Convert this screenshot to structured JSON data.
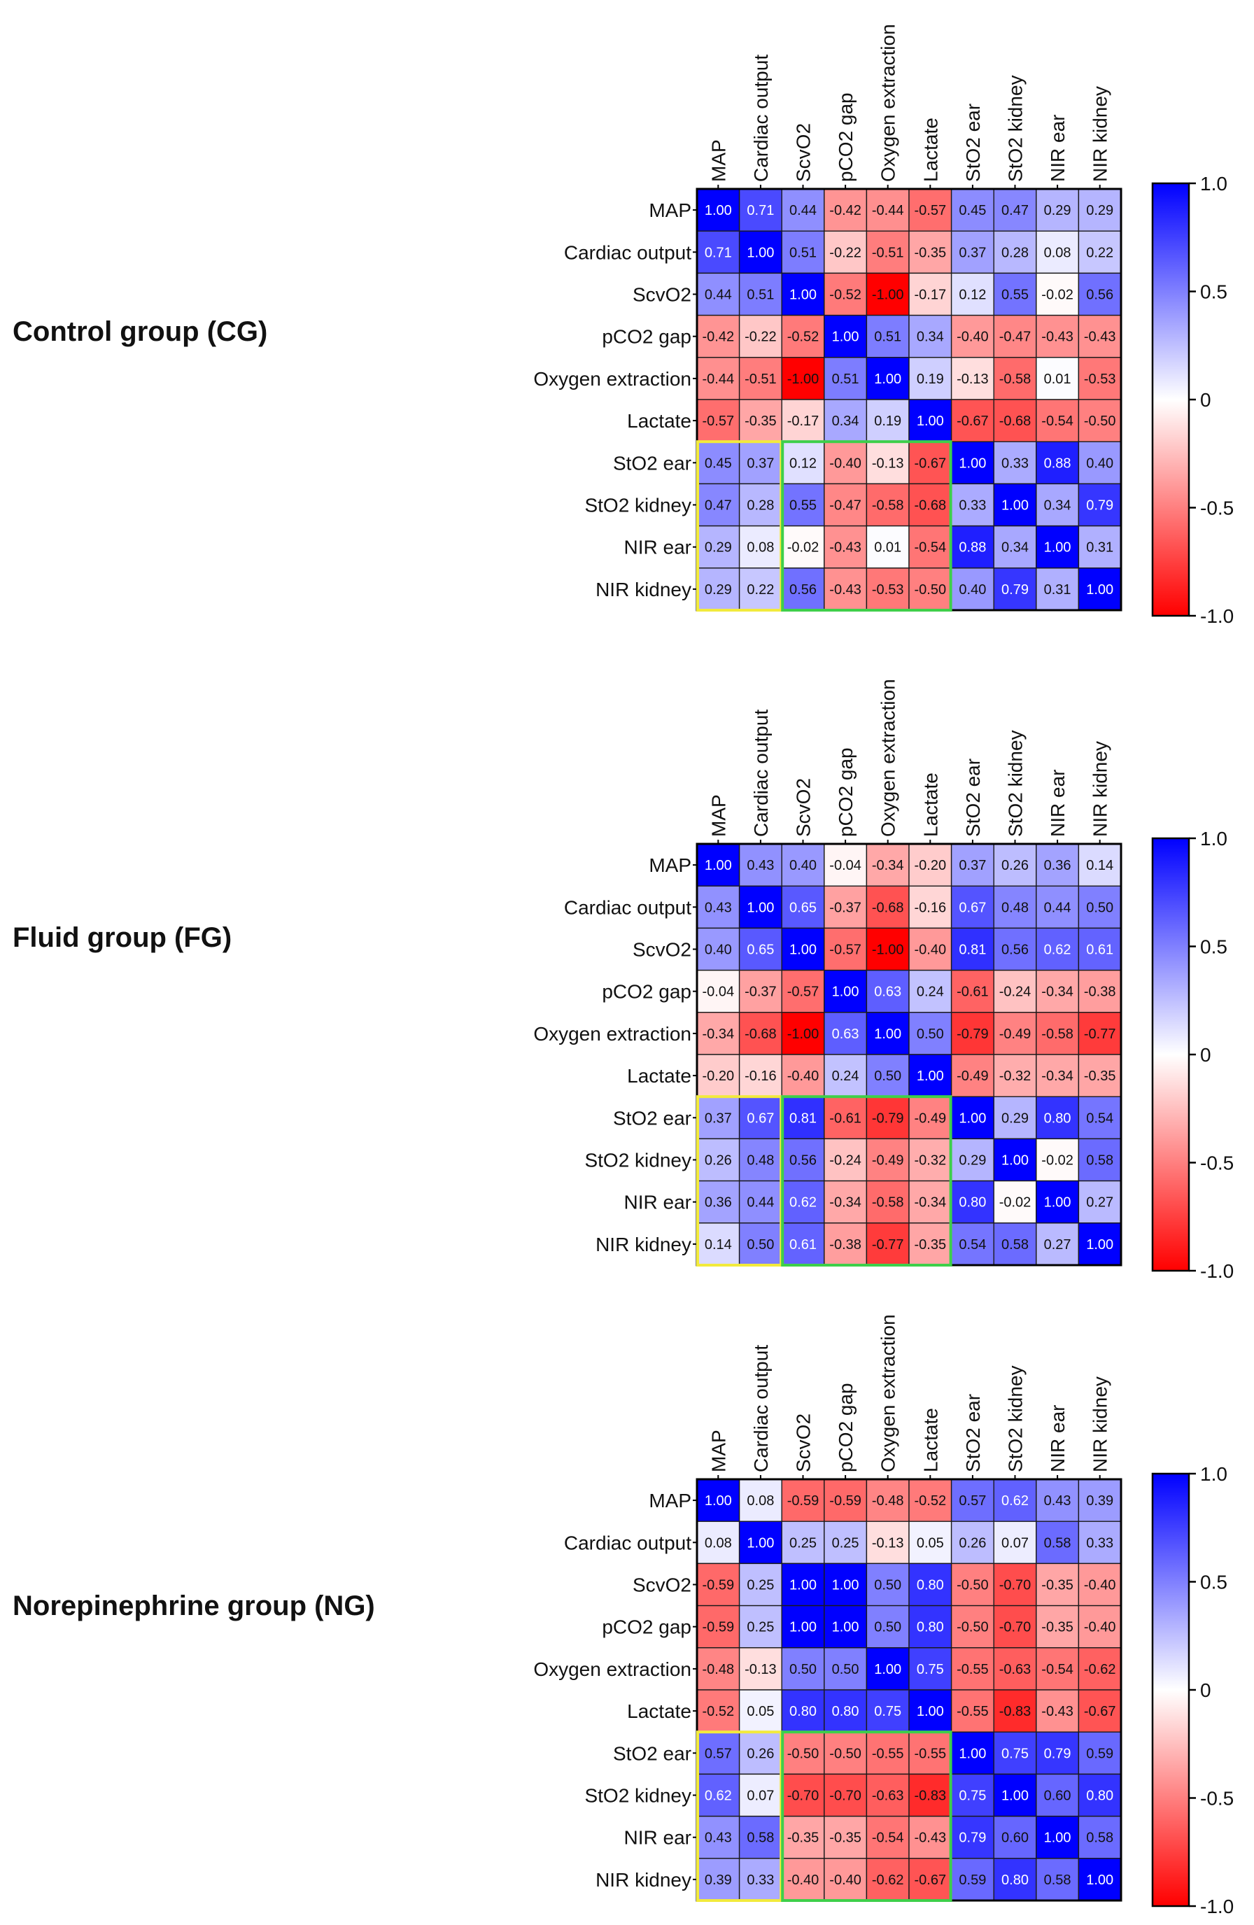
{
  "chart_data": [
    {
      "type": "heatmap",
      "title": "Control group (CG)",
      "variables": [
        "MAP",
        "Cardiac output",
        "ScvO2",
        "pCO2 gap",
        "Oxygen extraction",
        "Lactate",
        "StO2 ear",
        "StO2 kidney",
        "NIR ear",
        "NIR kidney"
      ],
      "values": [
        [
          "1.00",
          "0.71",
          "0.44",
          "-0.42",
          "-0.44",
          "-0.57",
          "0.45",
          "0.47",
          "0.29",
          "0.29"
        ],
        [
          "0.71",
          "1.00",
          "0.51",
          "-0.22",
          "-0.51",
          "-0.35",
          "0.37",
          "0.28",
          "0.08",
          "0.22"
        ],
        [
          "0.44",
          "0.51",
          "1.00",
          "-0.52",
          "-1.00",
          "-0.17",
          "0.12",
          "0.55",
          "-0.02",
          "0.56"
        ],
        [
          "-0.42",
          "-0.22",
          "-0.52",
          "1.00",
          "0.51",
          "0.34",
          "-0.40",
          "-0.47",
          "-0.43",
          "-0.43"
        ],
        [
          "-0.44",
          "-0.51",
          "-1.00",
          "0.51",
          "1.00",
          "0.19",
          "-0.13",
          "-0.58",
          "0.01",
          "-0.53"
        ],
        [
          "-0.57",
          "-0.35",
          "-0.17",
          "0.34",
          "0.19",
          "1.00",
          "-0.67",
          "-0.68",
          "-0.54",
          "-0.50"
        ],
        [
          "0.45",
          "0.37",
          "0.12",
          "-0.40",
          "-0.13",
          "-0.67",
          "1.00",
          "0.33",
          "0.88",
          "0.40"
        ],
        [
          "0.47",
          "0.28",
          "0.55",
          "-0.47",
          "-0.58",
          "-0.68",
          "0.33",
          "1.00",
          "0.34",
          "0.79"
        ],
        [
          "0.29",
          "0.08",
          "-0.02",
          "-0.43",
          "0.01",
          "-0.54",
          "0.88",
          "0.34",
          "1.00",
          "0.31"
        ],
        [
          "0.29",
          "0.22",
          "0.56",
          "-0.43",
          "-0.53",
          "-0.50",
          "0.40",
          "0.79",
          "0.31",
          "1.00"
        ]
      ],
      "colorbar": {
        "min": -1.0,
        "max": 1.0,
        "ticks": [
          "1.0",
          "0.5",
          "0",
          "-0.5",
          "-1.0"
        ],
        "low_color": "#ff0000",
        "mid_color": "#ffffff",
        "high_color": "#0000ff"
      }
    },
    {
      "type": "heatmap",
      "title": "Fluid group (FG)",
      "variables": [
        "MAP",
        "Cardiac output",
        "ScvO2",
        "pCO2 gap",
        "Oxygen extraction",
        "Lactate",
        "StO2 ear",
        "StO2 kidney",
        "NIR ear",
        "NIR kidney"
      ],
      "values": [
        [
          "1.00",
          "0.43",
          "0.40",
          "-0.04",
          "-0.34",
          "-0.20",
          "0.37",
          "0.26",
          "0.36",
          "0.14"
        ],
        [
          "0.43",
          "1.00",
          "0.65",
          "-0.37",
          "-0.68",
          "-0.16",
          "0.67",
          "0.48",
          "0.44",
          "0.50"
        ],
        [
          "0.40",
          "0.65",
          "1.00",
          "-0.57",
          "-1.00",
          "-0.40",
          "0.81",
          "0.56",
          "0.62",
          "0.61"
        ],
        [
          "-0.04",
          "-0.37",
          "-0.57",
          "1.00",
          "0.63",
          "0.24",
          "-0.61",
          "-0.24",
          "-0.34",
          "-0.38"
        ],
        [
          "-0.34",
          "-0.68",
          "-1.00",
          "0.63",
          "1.00",
          "0.50",
          "-0.79",
          "-0.49",
          "-0.58",
          "-0.77"
        ],
        [
          "-0.20",
          "-0.16",
          "-0.40",
          "0.24",
          "0.50",
          "1.00",
          "-0.49",
          "-0.32",
          "-0.34",
          "-0.35"
        ],
        [
          "0.37",
          "0.67",
          "0.81",
          "-0.61",
          "-0.79",
          "-0.49",
          "1.00",
          "0.29",
          "0.80",
          "0.54"
        ],
        [
          "0.26",
          "0.48",
          "0.56",
          "-0.24",
          "-0.49",
          "-0.32",
          "0.29",
          "1.00",
          "-0.02",
          "0.58"
        ],
        [
          "0.36",
          "0.44",
          "0.62",
          "-0.34",
          "-0.58",
          "-0.34",
          "0.80",
          "-0.02",
          "1.00",
          "0.27"
        ],
        [
          "0.14",
          "0.50",
          "0.61",
          "-0.38",
          "-0.77",
          "-0.35",
          "0.54",
          "0.58",
          "0.27",
          "1.00"
        ]
      ],
      "colorbar": {
        "min": -1.0,
        "max": 1.0,
        "ticks": [
          "1.0",
          "0.5",
          "0",
          "-0.5",
          "-1.0"
        ],
        "low_color": "#ff0000",
        "mid_color": "#ffffff",
        "high_color": "#0000ff"
      }
    },
    {
      "type": "heatmap",
      "title": "Norepinephrine group (NG)",
      "variables": [
        "MAP",
        "Cardiac output",
        "ScvO2",
        "pCO2 gap",
        "Oxygen extraction",
        "Lactate",
        "StO2 ear",
        "StO2 kidney",
        "NIR ear",
        "NIR kidney"
      ],
      "values": [
        [
          "1.00",
          "0.08",
          "-0.59",
          "-0.59",
          "-0.48",
          "-0.52",
          "0.57",
          "0.62",
          "0.43",
          "0.39"
        ],
        [
          "0.08",
          "1.00",
          "0.25",
          "0.25",
          "-0.13",
          "0.05",
          "0.26",
          "0.07",
          "0.58",
          "0.33"
        ],
        [
          "-0.59",
          "0.25",
          "1.00",
          "1.00",
          "0.50",
          "0.80",
          "-0.50",
          "-0.70",
          "-0.35",
          "-0.40"
        ],
        [
          "-0.59",
          "0.25",
          "1.00",
          "1.00",
          "0.50",
          "0.80",
          "-0.50",
          "-0.70",
          "-0.35",
          "-0.40"
        ],
        [
          "-0.48",
          "-0.13",
          "0.50",
          "0.50",
          "1.00",
          "0.75",
          "-0.55",
          "-0.63",
          "-0.54",
          "-0.62"
        ],
        [
          "-0.52",
          "0.05",
          "0.80",
          "0.80",
          "0.75",
          "1.00",
          "-0.55",
          "-0.83",
          "-0.43",
          "-0.67"
        ],
        [
          "0.57",
          "0.26",
          "-0.50",
          "-0.50",
          "-0.55",
          "-0.55",
          "1.00",
          "0.75",
          "0.79",
          "0.59"
        ],
        [
          "0.62",
          "0.07",
          "-0.70",
          "-0.70",
          "-0.63",
          "-0.83",
          "0.75",
          "1.00",
          "0.60",
          "0.80"
        ],
        [
          "0.43",
          "0.58",
          "-0.35",
          "-0.35",
          "-0.54",
          "-0.43",
          "0.79",
          "0.60",
          "1.00",
          "0.58"
        ],
        [
          "0.39",
          "0.33",
          "-0.40",
          "-0.40",
          "-0.62",
          "-0.67",
          "0.59",
          "0.80",
          "0.58",
          "1.00"
        ]
      ],
      "colorbar": {
        "min": -1.0,
        "max": 1.0,
        "ticks": [
          "1.0",
          "0.5",
          "0",
          "-0.5",
          "-1.0"
        ],
        "low_color": "#ff0000",
        "mid_color": "#ffffff",
        "high_color": "#0000ff"
      }
    }
  ],
  "highlight_boxes": [
    {
      "name": "yellow-highlight-box",
      "color": "#f2ea3c",
      "rows": [
        6,
        9
      ],
      "cols": [
        0,
        1
      ]
    },
    {
      "name": "green-highlight-box",
      "color": "#3ecf4a",
      "rows": [
        6,
        9
      ],
      "cols": [
        2,
        5
      ]
    }
  ]
}
